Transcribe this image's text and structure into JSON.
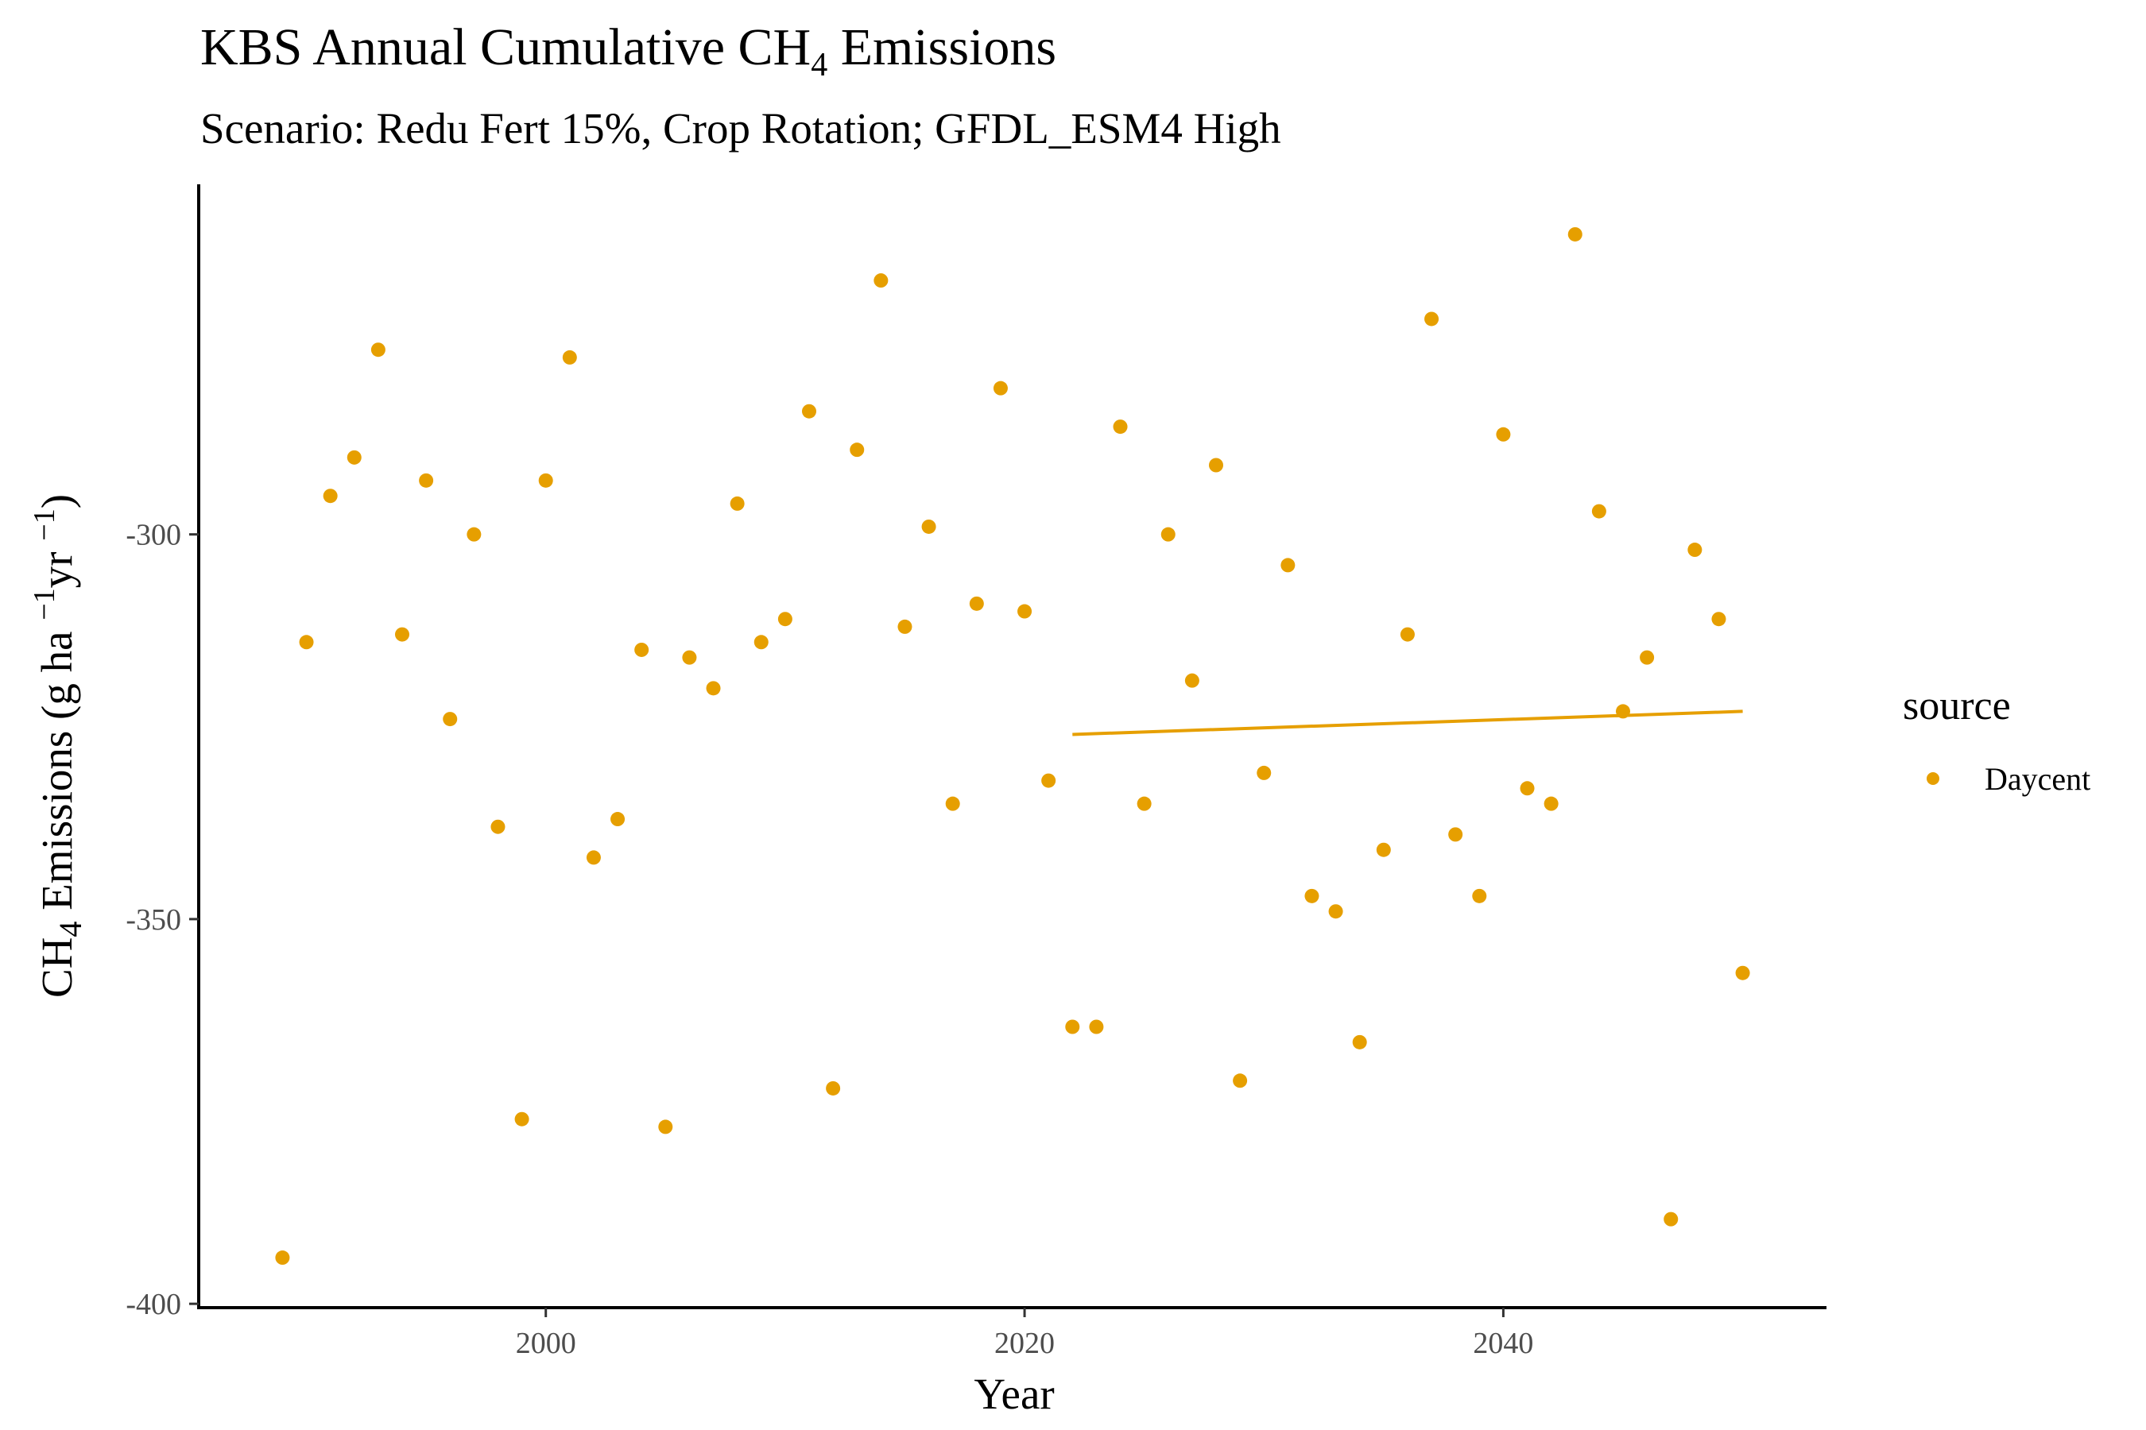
{
  "chart_data": {
    "type": "scatter",
    "title_main": "KBS Annual Cumulative CH",
    "title_sub": "4",
    "title_tail": " Emissions",
    "subtitle": "Scenario: Redu Fert 15%, Crop Rotation; GFDL_ESM4 High",
    "xlabel": "Year",
    "ylabel_pre": "CH",
    "ylabel_sub": "4",
    "ylabel_mid": " Emissions (g ha ",
    "ylabel_sup1": "−1",
    "ylabel_yr": "yr ",
    "ylabel_sup2": "−1",
    "ylabel_end": ")",
    "xlim": [
      1985.5,
      2053.5
    ],
    "ylim": [
      -400.5,
      -254.5
    ],
    "x_ticks": [
      2000,
      2020,
      2040
    ],
    "x_tick_labels": [
      "2000",
      "2020",
      "2040"
    ],
    "y_ticks": [
      -400,
      -350,
      -300
    ],
    "y_tick_labels": [
      "-400",
      "-350",
      "-300"
    ],
    "grid": false,
    "legend_position": "right",
    "legend_title": "source",
    "color": "#E69F00",
    "series": [
      {
        "name": "Daycent",
        "points": [
          [
            1989,
            -394
          ],
          [
            1990,
            -314
          ],
          [
            1991,
            -295
          ],
          [
            1992,
            -290
          ],
          [
            1993,
            -276
          ],
          [
            1994,
            -313
          ],
          [
            1995,
            -293
          ],
          [
            1996,
            -324
          ],
          [
            1997,
            -300
          ],
          [
            1998,
            -338
          ],
          [
            1999,
            -376
          ],
          [
            2000,
            -293
          ],
          [
            2001,
            -277
          ],
          [
            2002,
            -342
          ],
          [
            2003,
            -337
          ],
          [
            2004,
            -315
          ],
          [
            2005,
            -377
          ],
          [
            2006,
            -316
          ],
          [
            2007,
            -320
          ],
          [
            2008,
            -296
          ],
          [
            2009,
            -314
          ],
          [
            2010,
            -311
          ],
          [
            2011,
            -284
          ],
          [
            2012,
            -372
          ],
          [
            2013,
            -289
          ],
          [
            2014,
            -267
          ],
          [
            2015,
            -312
          ],
          [
            2016,
            -299
          ],
          [
            2017,
            -335
          ],
          [
            2018,
            -309
          ],
          [
            2019,
            -281
          ],
          [
            2020,
            -310
          ],
          [
            2021,
            -332
          ],
          [
            2022,
            -364
          ],
          [
            2023,
            -364
          ],
          [
            2024,
            -286
          ],
          [
            2025,
            -335
          ],
          [
            2026,
            -300
          ],
          [
            2027,
            -319
          ],
          [
            2028,
            -291
          ],
          [
            2029,
            -371
          ],
          [
            2030,
            -331
          ],
          [
            2031,
            -304
          ],
          [
            2032,
            -347
          ],
          [
            2033,
            -349
          ],
          [
            2034,
            -366
          ],
          [
            2035,
            -341
          ],
          [
            2036,
            -313
          ],
          [
            2037,
            -272
          ],
          [
            2038,
            -339
          ],
          [
            2039,
            -347
          ],
          [
            2040,
            -287
          ],
          [
            2041,
            -333
          ],
          [
            2042,
            -335
          ],
          [
            2043,
            -261
          ],
          [
            2044,
            -297
          ],
          [
            2045,
            -323
          ],
          [
            2046,
            -316
          ],
          [
            2047,
            -389
          ],
          [
            2048,
            -302
          ],
          [
            2049,
            -311
          ],
          [
            2050,
            -357
          ]
        ]
      }
    ],
    "trend_line": {
      "x": [
        2022,
        2050
      ],
      "y": [
        -326,
        -323
      ]
    }
  }
}
